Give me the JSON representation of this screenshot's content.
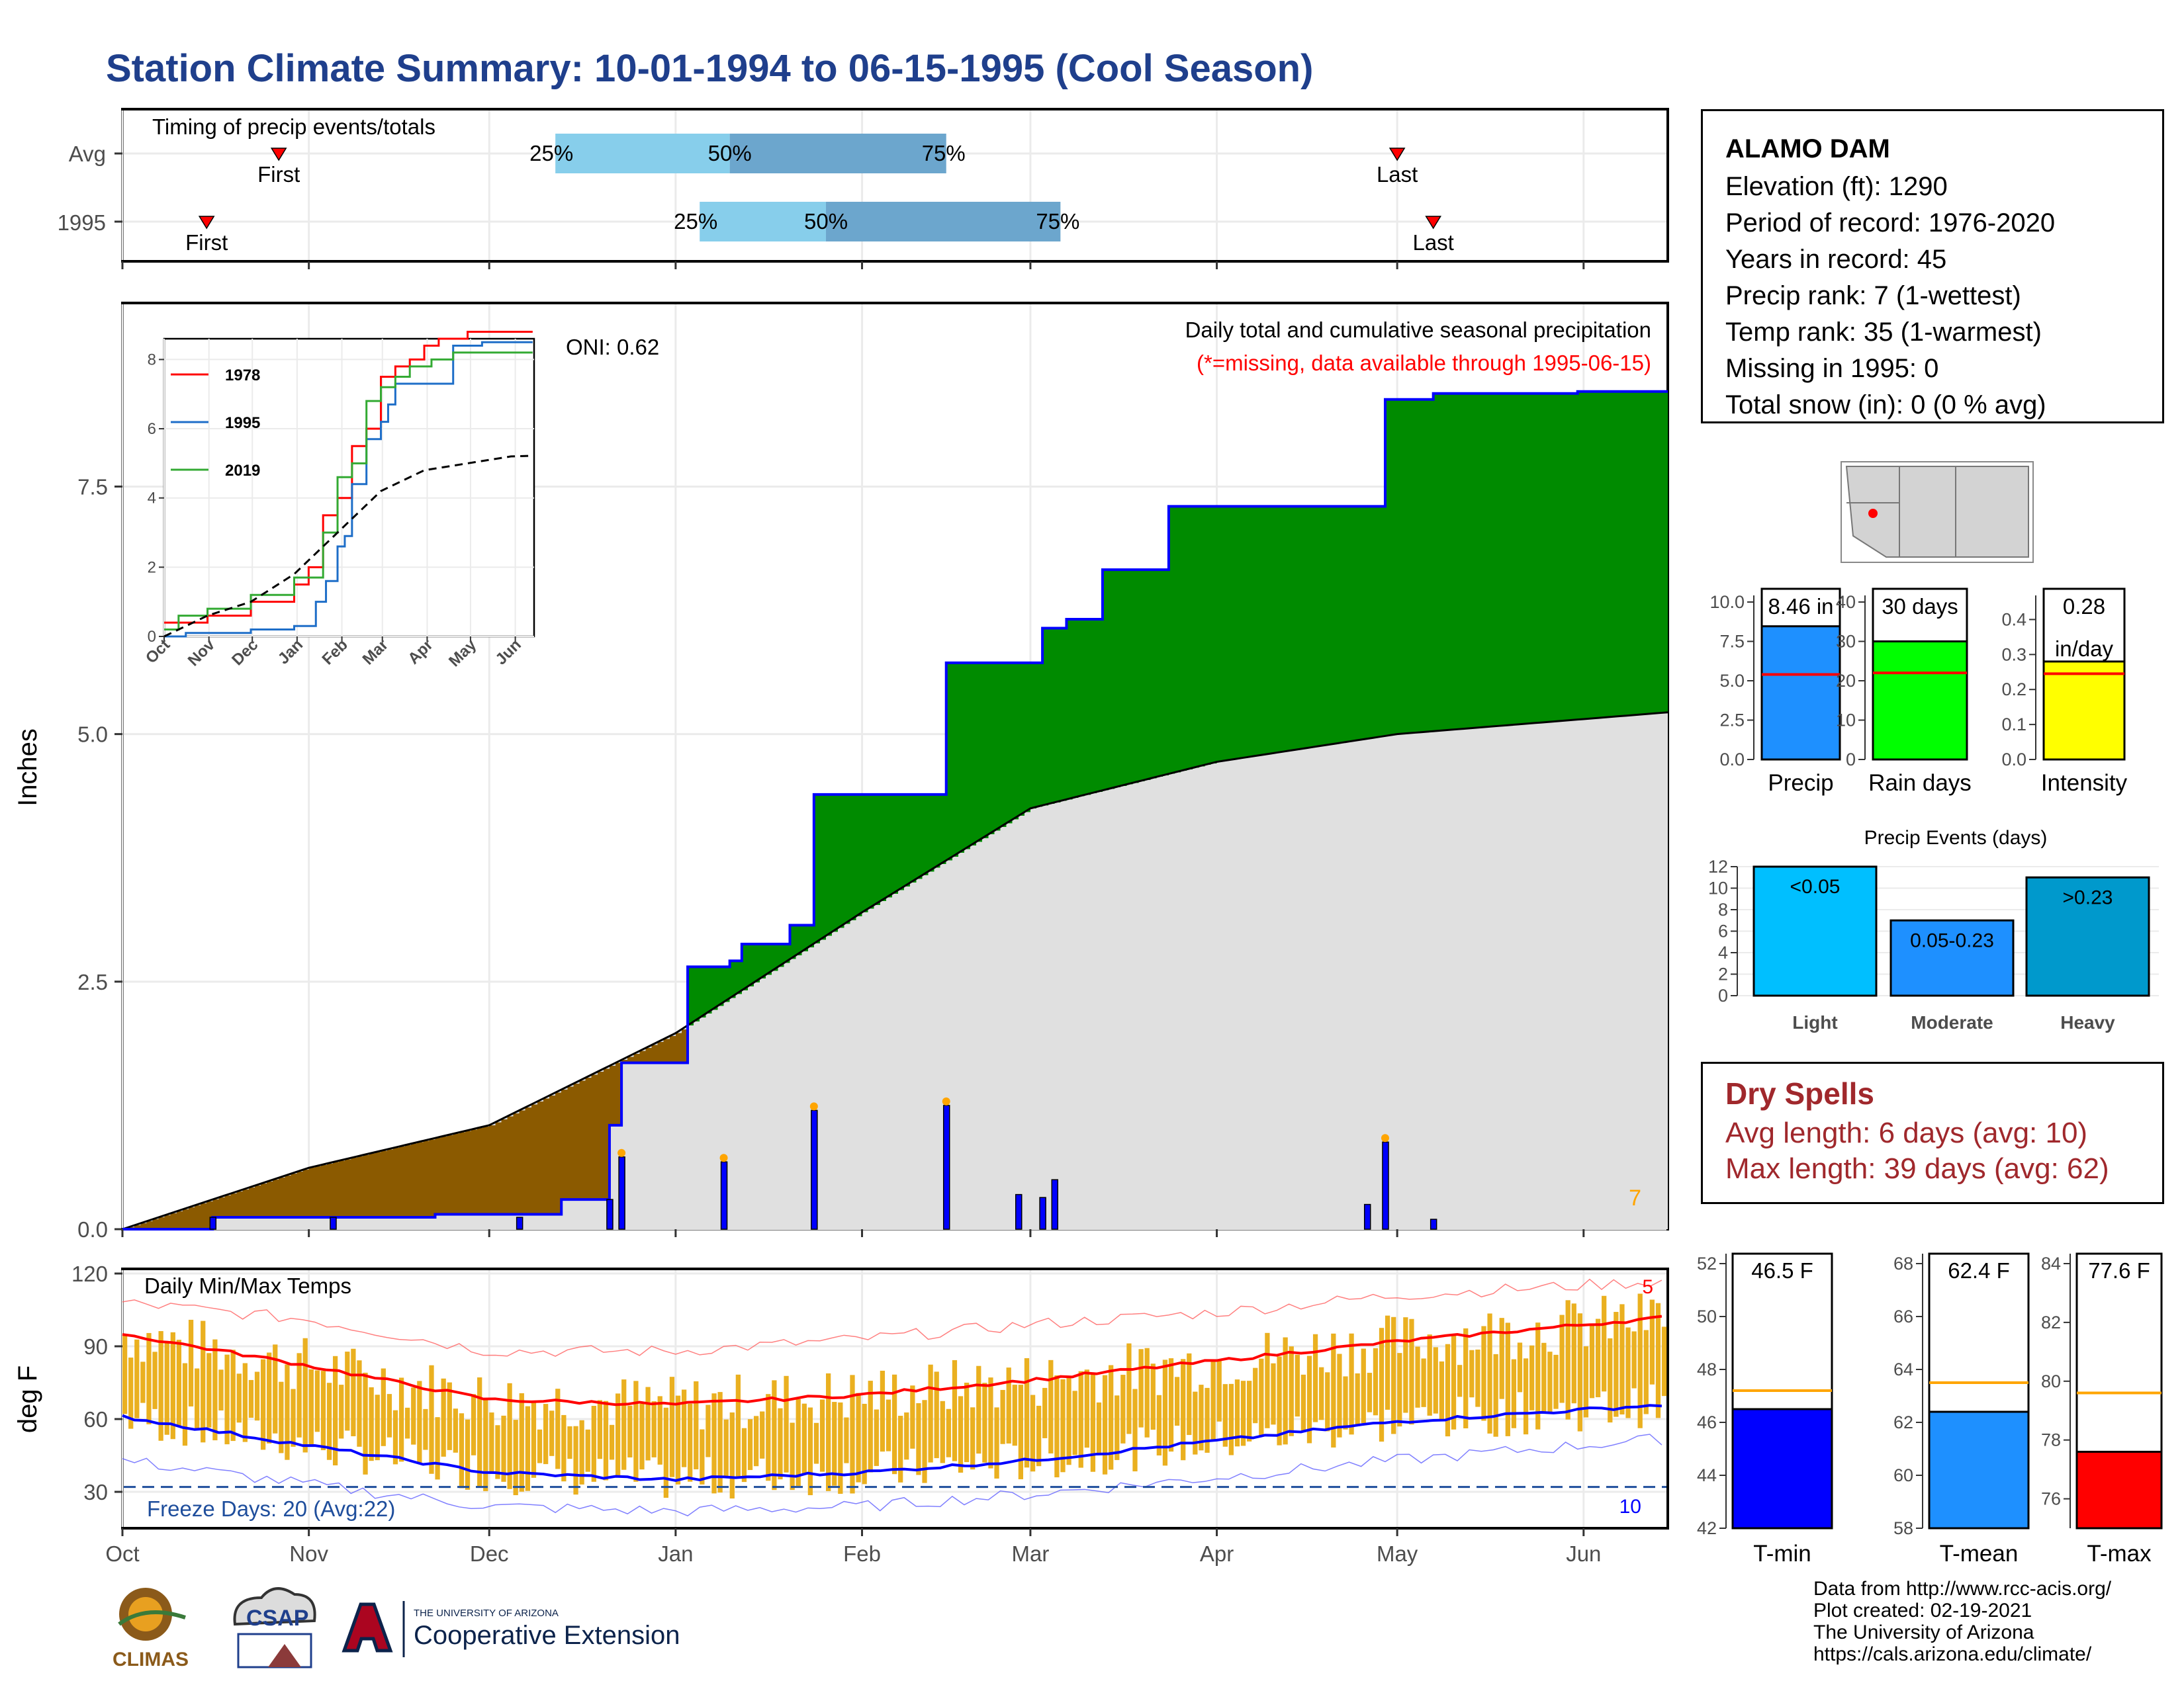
{
  "title": "Station Climate Summary: 10-01-1994 to 06-15-1995 (Cool Season)",
  "colors": {
    "title": "#1f3f8c",
    "light_blue": "#87ceeb",
    "mid_blue": "#6ca6cd",
    "brown": "#8b5a00",
    "green": "#008b00",
    "gray_area": "#e0e0e0",
    "precip_bar": "#0000ff",
    "range_bar": "#eab020",
    "max_line": "#ff0000",
    "min_line": "#0000ff",
    "dry_red": "#a0282c",
    "orange": "#ffa500"
  },
  "timing": {
    "label": "Timing of precip events/totals",
    "rows": [
      {
        "name": "Avg",
        "first": "First",
        "last": "Last",
        "p25": "25%",
        "p50": "50%",
        "p75": "75%"
      },
      {
        "name": "1995",
        "first": "First",
        "last": "Last",
        "p25": "25%",
        "p50": "50%",
        "p75": "75%"
      }
    ]
  },
  "precip_panel": {
    "ylabel": "Inches",
    "oni": "ONI: 0.62",
    "header": "Daily total and cumulative seasonal precipitation",
    "missing_note": "(*=missing, data available through 1995-06-15)",
    "rank_corner": "7"
  },
  "inset": {
    "series_names": [
      "1978",
      "1995",
      "2019"
    ]
  },
  "station": {
    "name": "ALAMO DAM",
    "lines": [
      "Elevation (ft): 1290",
      "Period of record: 1976-2020",
      "Years in record: 45",
      "Precip rank: 7 (1-wettest)",
      "Temp rank: 35 (1-warmest)",
      "Missing in 1995: 0",
      "Total snow (in): 0 (0 % avg)"
    ]
  },
  "precip_summary": [
    {
      "label": "Precip",
      "value_text": "8.46 in"
    },
    {
      "label": "Rain days",
      "value_text": "30 days"
    },
    {
      "label": "Intensity",
      "value_text": "0.28",
      "value_text2": "in/day"
    }
  ],
  "events": {
    "title": "Precip Events (days)"
  },
  "dry_spells": {
    "title": "Dry Spells",
    "avg": "Avg length: 6 days (avg: 10)",
    "max": "Max length: 39 days (avg: 62)"
  },
  "temp_panel": {
    "ylabel": "deg F",
    "label": "Daily Min/Max Temps",
    "freeze": "Freeze Days: 20 (Avg:22)",
    "max_rank": "5",
    "min_rank": "10"
  },
  "temp_summary": [
    {
      "label": "T-min",
      "value_text": "46.5 F"
    },
    {
      "label": "T-mean",
      "value_text": "62.4 F"
    },
    {
      "label": "T-max",
      "value_text": "77.6 F"
    }
  ],
  "credits": [
    "Data from http://www.rcc-acis.org/",
    "Plot created: 02-19-2021",
    "The University of Arizona",
    "https://cals.arizona.edu/climate/"
  ],
  "logos": {
    "climas": "CLIMAS",
    "csap": "CSAP",
    "ua_small": "THE UNIVERSITY OF ARIZONA",
    "ua_big": "Cooperative Extension"
  },
  "chart_data": [
    {
      "type": "bar",
      "title": "Timing of precip events/totals",
      "categories": [
        "Avg",
        "1995"
      ],
      "x_ticks": [
        "Oct",
        "Nov",
        "Dec",
        "Jan",
        "Feb",
        "Mar",
        "Apr",
        "May",
        "Jun"
      ],
      "series": [
        {
          "name": "First",
          "values": [
            "1994-10-27",
            "1994-10-15"
          ]
        },
        {
          "name": "25%",
          "values": [
            "1994-12-12",
            "1995-01-05"
          ]
        },
        {
          "name": "50%",
          "values": [
            "1995-01-10",
            "1995-01-26"
          ]
        },
        {
          "name": "75%",
          "values": [
            "1995-02-15",
            "1995-03-06"
          ]
        },
        {
          "name": "Last",
          "values": [
            "1995-05-01",
            "1995-05-07"
          ]
        }
      ]
    },
    {
      "type": "area",
      "title": "Daily total and cumulative seasonal precipitation",
      "ylabel": "Inches",
      "ylim": [
        0,
        9.2
      ],
      "y_ticks": [
        0.0,
        2.5,
        5.0,
        7.5
      ],
      "x_ticks": [
        "Oct",
        "Nov",
        "Dec",
        "Jan",
        "Feb",
        "Mar",
        "Apr",
        "May",
        "Jun"
      ],
      "xlim": [
        "1994-10-01",
        "1995-06-15"
      ],
      "series": [
        {
          "name": "cumulative 1995",
          "x": [
            "1994-10-01",
            "1994-10-16",
            "1994-11-22",
            "1994-12-13",
            "1994-12-21",
            "1994-12-23",
            "1995-01-03",
            "1995-01-10",
            "1995-01-12",
            "1995-01-16",
            "1995-01-20",
            "1995-01-24",
            "1995-02-15",
            "1995-03-03",
            "1995-03-07",
            "1995-03-13",
            "1995-03-24",
            "1995-04-29",
            "1995-05-07",
            "1995-05-31",
            "1995-06-15"
          ],
          "y": [
            0.0,
            0.12,
            0.15,
            0.3,
            1.05,
            1.68,
            2.65,
            2.71,
            2.88,
            2.88,
            3.07,
            4.39,
            5.72,
            6.07,
            6.16,
            6.66,
            7.3,
            8.38,
            8.44,
            8.46,
            8.46
          ]
        },
        {
          "name": "cumulative average",
          "x": [
            "1994-10-01",
            "1994-11-01",
            "1994-12-01",
            "1995-01-01",
            "1995-02-01",
            "1995-03-01",
            "1995-04-01",
            "1995-05-01",
            "1995-06-15"
          ],
          "y": [
            0.0,
            0.62,
            1.05,
            1.98,
            3.2,
            4.25,
            4.72,
            5.0,
            5.22
          ]
        },
        {
          "name": "daily",
          "x": [
            "1994-10-16",
            "1994-11-05",
            "1994-12-06",
            "1994-12-21",
            "1994-12-23",
            "1995-01-09",
            "1995-01-24",
            "1995-02-15",
            "1995-02-27",
            "1995-03-03",
            "1995-03-05",
            "1995-04-26",
            "1995-04-29",
            "1995-05-07"
          ],
          "y": [
            0.12,
            0.12,
            0.12,
            0.3,
            0.73,
            0.68,
            1.2,
            1.25,
            0.35,
            0.32,
            0.5,
            0.25,
            0.88,
            0.1
          ]
        }
      ]
    },
    {
      "type": "line",
      "ylim": [
        0,
        8.6
      ],
      "y_ticks": [
        0,
        2,
        4,
        6,
        8
      ],
      "x_ticks": [
        "Oct",
        "Nov",
        "Dec",
        "Jan",
        "Feb",
        "Mar",
        "Apr",
        "May",
        "Jun"
      ],
      "series": [
        {
          "name": "1978",
          "x": [
            0,
            30,
            60,
            90,
            100,
            110,
            120,
            130,
            140,
            150,
            160,
            170,
            180,
            190,
            200,
            210,
            220,
            230,
            240,
            255
          ],
          "y": [
            0.4,
            0.6,
            1.0,
            1.5,
            2.0,
            3.5,
            4.0,
            5.5,
            6.0,
            7.5,
            7.8,
            8.0,
            8.4,
            8.6,
            8.6,
            8.8,
            8.8,
            8.8,
            8.8,
            8.8
          ]
        },
        {
          "name": "1995",
          "x": [
            0,
            15,
            60,
            90,
            105,
            112,
            120,
            125,
            130,
            140,
            150,
            155,
            160,
            165,
            200,
            210,
            220,
            230,
            240,
            255
          ],
          "y": [
            0.0,
            0.1,
            0.2,
            0.3,
            1.0,
            1.6,
            2.6,
            2.9,
            4.4,
            5.7,
            6.2,
            6.7,
            7.3,
            7.3,
            8.4,
            8.4,
            8.5,
            8.5,
            8.5,
            8.5
          ]
        },
        {
          "name": "2019",
          "x": [
            0,
            10,
            30,
            60,
            90,
            110,
            120,
            130,
            140,
            150,
            160,
            170,
            185,
            200,
            220,
            255
          ],
          "y": [
            0.2,
            0.6,
            0.8,
            1.2,
            1.7,
            3.0,
            4.6,
            5.0,
            6.8,
            7.2,
            7.5,
            7.8,
            8.0,
            8.2,
            8.2,
            8.2
          ]
        },
        {
          "name": "average",
          "x": [
            0,
            30,
            60,
            90,
            120,
            150,
            180,
            210,
            240,
            255
          ],
          "y": [
            0.0,
            0.6,
            1.0,
            1.8,
            3.0,
            4.2,
            4.8,
            5.0,
            5.2,
            5.22
          ]
        }
      ]
    },
    {
      "type": "bar",
      "categories": [
        "Precip",
        "Rain days",
        "Intensity"
      ],
      "values": [
        8.46,
        30,
        0.28
      ],
      "averages": [
        5.4,
        22,
        0.245
      ],
      "ylims": [
        [
          0,
          10
        ],
        [
          0,
          40
        ],
        [
          0,
          0.45
        ]
      ]
    },
    {
      "type": "bar",
      "title": "Precip Events (days)",
      "categories": [
        "Light",
        "Moderate",
        "Heavy"
      ],
      "bar_labels": [
        "<0.05",
        "0.05-0.23",
        ">0.23"
      ],
      "values": [
        12,
        7,
        11
      ],
      "ylim": [
        0,
        12
      ]
    },
    {
      "type": "line",
      "title": "Daily Min/Max Temps",
      "ylabel": "deg F",
      "ylim": [
        15,
        120
      ],
      "y_ticks": [
        30,
        60,
        90,
        120
      ],
      "x_ticks": [
        "Oct",
        "Nov",
        "Dec",
        "Jan",
        "Feb",
        "Mar",
        "Apr",
        "May",
        "Jun"
      ],
      "series": [
        {
          "name": "avg max",
          "x": [
            "1994-10-01",
            "1994-11-01",
            "1994-12-01",
            "1995-01-01",
            "1995-02-01",
            "1995-03-01",
            "1995-04-01",
            "1995-05-01",
            "1995-06-15"
          ],
          "y": [
            95,
            82,
            68,
            66,
            70,
            76,
            84,
            92,
            102
          ]
        },
        {
          "name": "avg min",
          "x": [
            "1994-10-01",
            "1994-11-01",
            "1994-12-01",
            "1995-01-01",
            "1995-02-01",
            "1995-03-01",
            "1995-04-01",
            "1995-05-01",
            "1995-06-15"
          ],
          "y": [
            61,
            49,
            38,
            35,
            38,
            43,
            51,
            59,
            66
          ]
        },
        {
          "name": "record max",
          "x": [
            "1994-10-01",
            "1994-11-01",
            "1994-12-01",
            "1995-01-01",
            "1995-02-01",
            "1995-03-01",
            "1995-04-01",
            "1995-05-01",
            "1995-06-15"
          ],
          "y": [
            108,
            101,
            88,
            88,
            93,
            99,
            104,
            111,
            117
          ]
        },
        {
          "name": "record min",
          "x": [
            "1994-10-01",
            "1994-11-01",
            "1994-12-01",
            "1995-01-01",
            "1995-02-01",
            "1995-03-01",
            "1995-04-01",
            "1995-05-01",
            "1995-06-15"
          ],
          "y": [
            43,
            33,
            24,
            22,
            24,
            29,
            36,
            43,
            52
          ]
        }
      ],
      "freeze_threshold": 32
    },
    {
      "type": "bar",
      "categories": [
        "T-min",
        "T-mean",
        "T-max"
      ],
      "values": [
        46.5,
        62.4,
        77.6
      ],
      "averages": [
        47.2,
        63.5,
        79.6
      ],
      "ylims": [
        [
          42,
          52
        ],
        [
          58,
          68
        ],
        [
          75,
          84
        ]
      ]
    }
  ]
}
